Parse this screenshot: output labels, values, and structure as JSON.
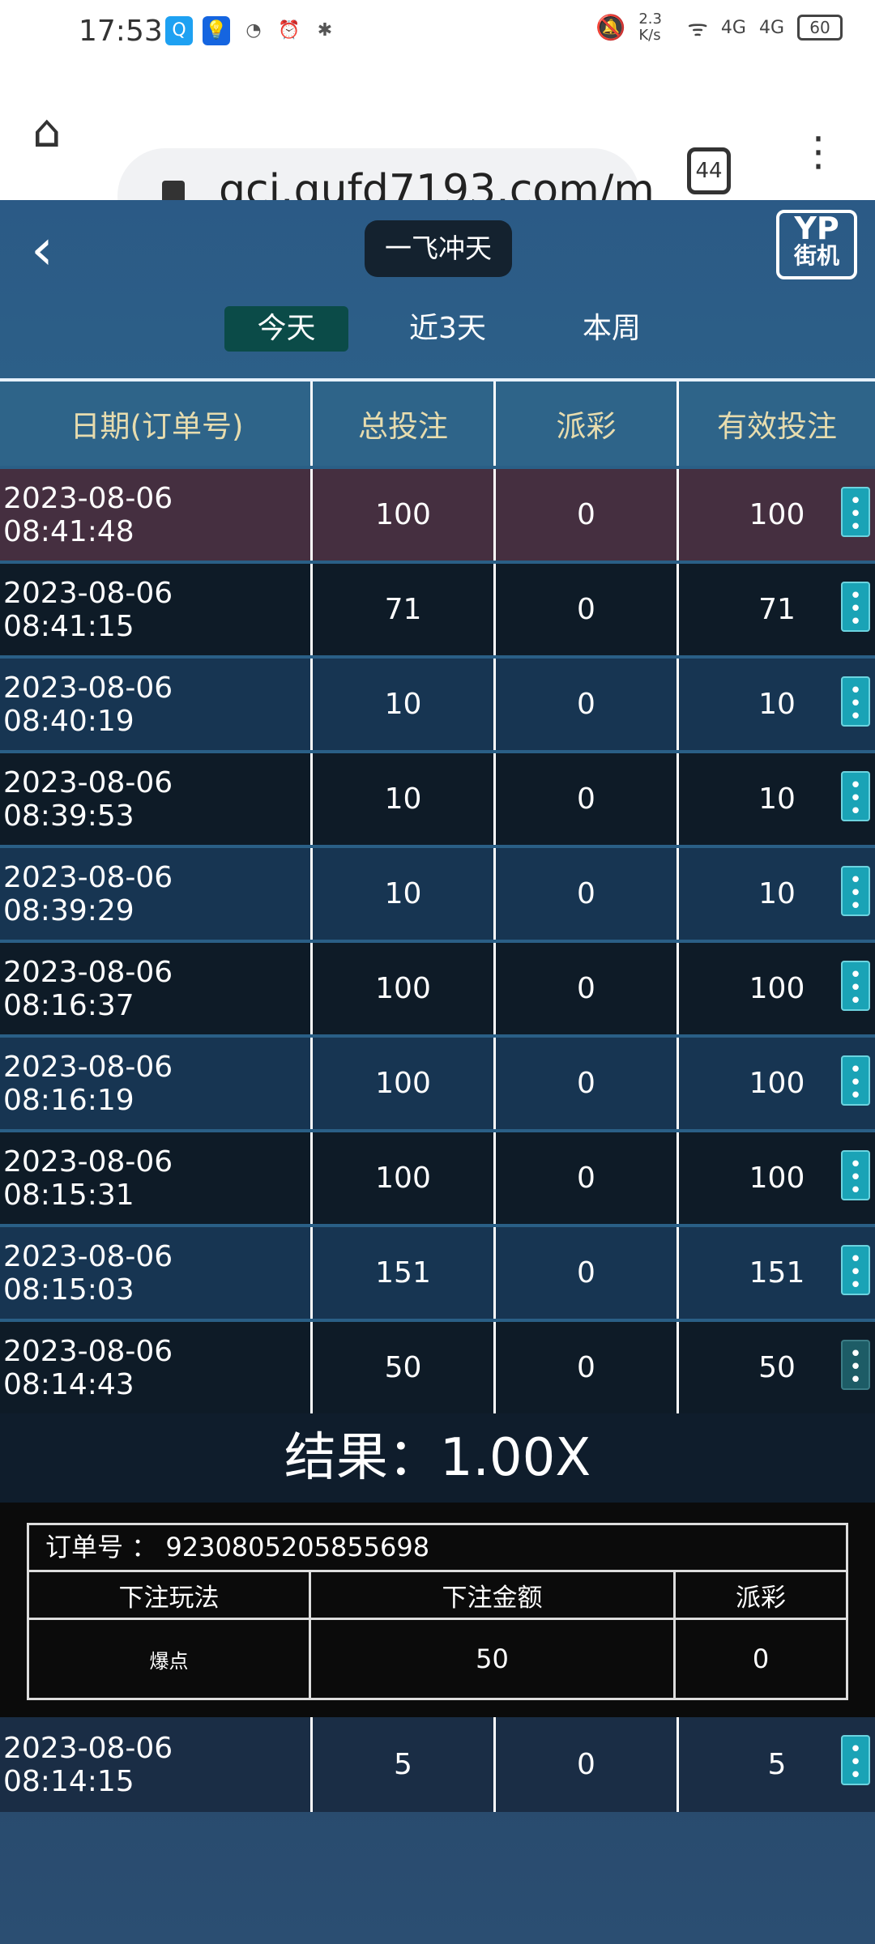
{
  "status_bar": {
    "time": "17:53",
    "net_speed": "2.3 K/s",
    "network": "4G",
    "battery": "60"
  },
  "browser": {
    "url": "gci.qufd7193.com/m",
    "tab_count": "44"
  },
  "header": {
    "title": "一飞冲天",
    "logo_top": "YP",
    "logo_bottom": "街机"
  },
  "tabs": [
    {
      "label": "今天",
      "active": true
    },
    {
      "label": "近3天"
    },
    {
      "label": "本周"
    }
  ],
  "table": {
    "columns": [
      "日期(订单号)",
      "总投注",
      "派彩",
      "有效投注"
    ],
    "rows": [
      {
        "date": "2023-08-06 08:41:48",
        "total": "100",
        "payout": "0",
        "valid": "100"
      },
      {
        "date": "2023-08-06 08:41:15",
        "total": "71",
        "payout": "0",
        "valid": "71"
      },
      {
        "date": "2023-08-06 08:40:19",
        "total": "10",
        "payout": "0",
        "valid": "10"
      },
      {
        "date": "2023-08-06 08:39:53",
        "total": "10",
        "payout": "0",
        "valid": "10"
      },
      {
        "date": "2023-08-06 08:39:29",
        "total": "10",
        "payout": "0",
        "valid": "10"
      },
      {
        "date": "2023-08-06 08:16:37",
        "total": "100",
        "payout": "0",
        "valid": "100"
      },
      {
        "date": "2023-08-06 08:16:19",
        "total": "100",
        "payout": "0",
        "valid": "100"
      },
      {
        "date": "2023-08-06 08:15:31",
        "total": "100",
        "payout": "0",
        "valid": "100"
      },
      {
        "date": "2023-08-06 08:15:03",
        "total": "151",
        "payout": "0",
        "valid": "151"
      },
      {
        "date": "2023-08-06 08:14:43",
        "total": "50",
        "payout": "0",
        "valid": "50"
      },
      {
        "date": "2023-08-06 08:14:15",
        "total": "5",
        "payout": "0",
        "valid": "5"
      }
    ]
  },
  "detail": {
    "result": "结果：1.00X",
    "order_label": "订单号 ：",
    "order_no": "9230805205855698",
    "headers": [
      "下注玩法",
      "下注金额",
      "派彩"
    ],
    "values": [
      "爆点",
      "50",
      "0"
    ]
  },
  "colors": {
    "highlight_row": "#452f40",
    "menu_button": "#1aa3b6",
    "active_tab": "#0b4b48",
    "header_text": "#e7dcae"
  }
}
